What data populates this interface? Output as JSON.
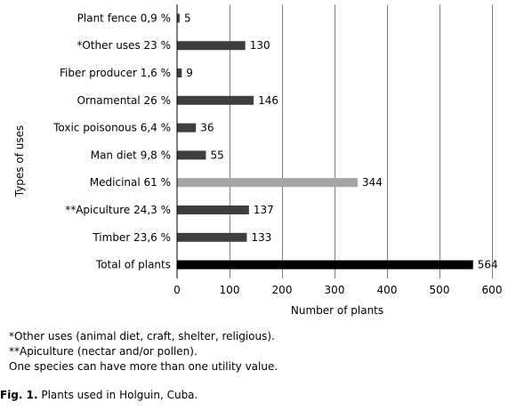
{
  "chart_data": {
    "type": "bar",
    "orientation": "horizontal",
    "categories": [
      "Plant fence 0,9 %",
      "*Other uses 23 %",
      "Fiber producer 1,6 %",
      "Ornamental 26 %",
      "Toxic poisonous 6,4 %",
      "Man diet 9,8 %",
      "Medicinal 61 %",
      "**Apiculture 24,3 %",
      "Timber 23,6 %",
      "Total of plants"
    ],
    "values": [
      5,
      130,
      9,
      146,
      36,
      55,
      344,
      137,
      133,
      564
    ],
    "data_labels": [
      "5",
      "130",
      "9",
      "146",
      "36",
      "55",
      "344",
      "137",
      "133",
      "564"
    ],
    "bar_colors": [
      "#3f3f3f",
      "#3f3f3f",
      "#3f3f3f",
      "#3f3f3f",
      "#3f3f3f",
      "#3f3f3f",
      "#a6a6a6",
      "#3f3f3f",
      "#3f3f3f",
      "#000000"
    ],
    "xlabel": "Number of plants",
    "ylabel": "Types of uses",
    "xlim": [
      0,
      600
    ],
    "x_ticks": [
      0,
      100,
      200,
      300,
      400,
      500,
      600
    ],
    "x_tick_labels": [
      "0",
      "100",
      "200",
      "300",
      "400",
      "500",
      "600"
    ],
    "grid": "vertical",
    "grid_color": "#808080"
  },
  "notes": [
    "*Other uses (animal diet, craft, shelter, religious).",
    "**Apiculture (nectar and/or pollen).",
    "One species can have more than one utility value."
  ],
  "caption": {
    "label": "Fig. 1.",
    "text": " Plants used in Holguin, Cuba."
  }
}
